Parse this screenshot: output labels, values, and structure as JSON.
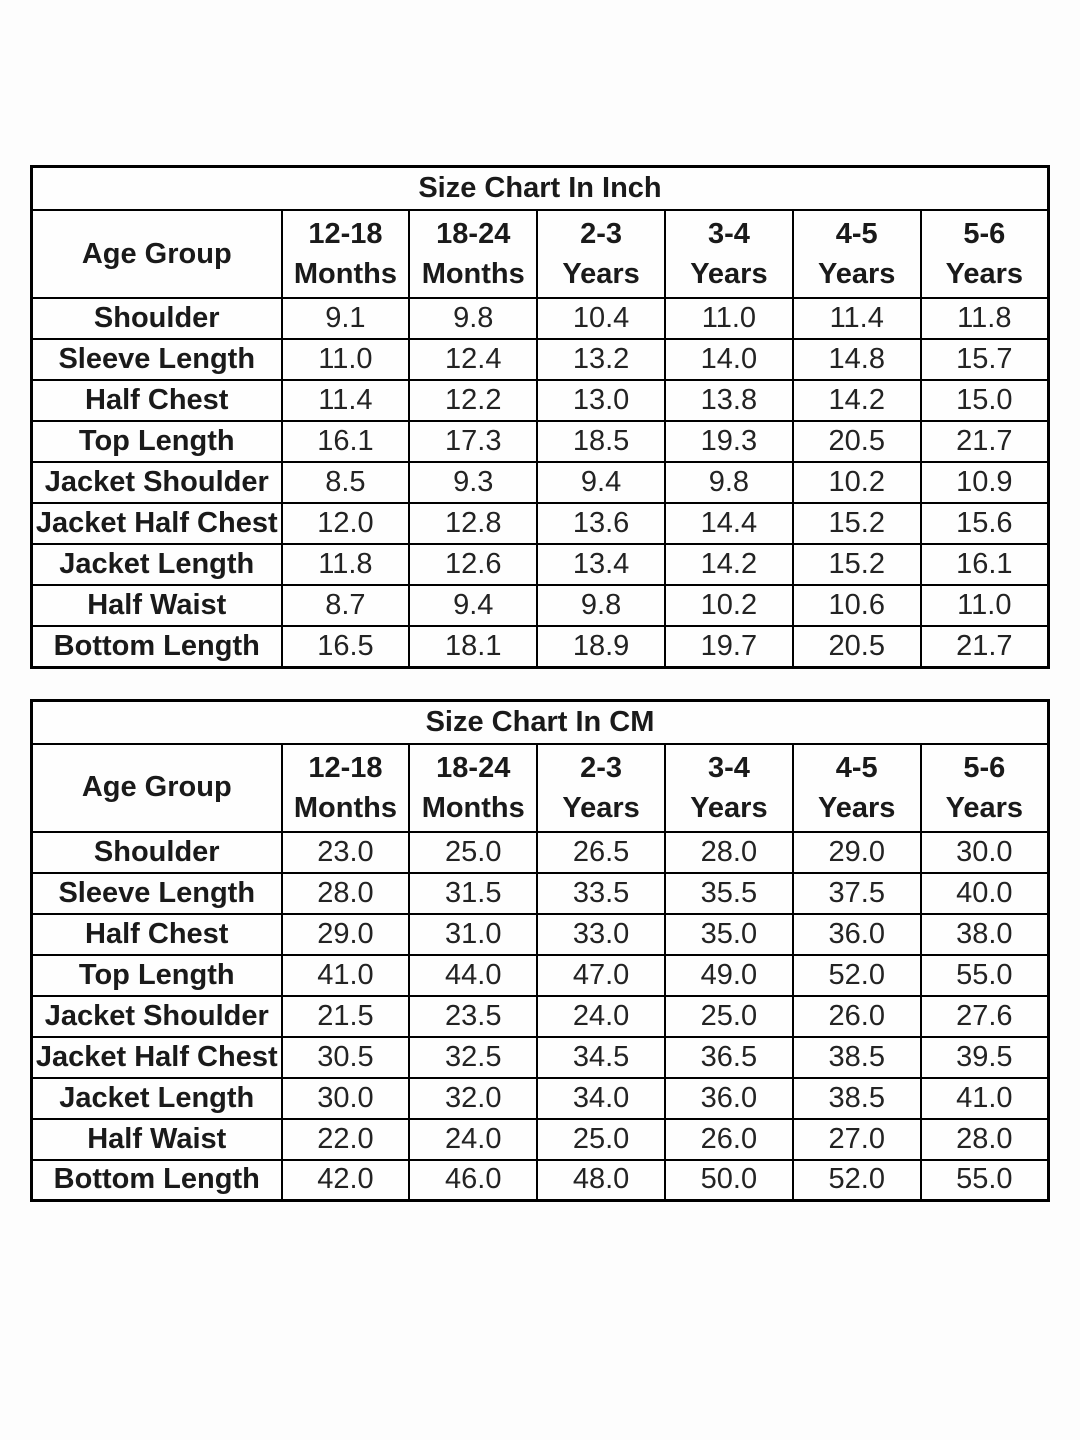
{
  "page": {
    "background_color": "#fdfdfd",
    "text_color": "#1a1a1a",
    "border_color": "#000000"
  },
  "tables": [
    {
      "title": "Size Chart In Inch",
      "header_label": "Age Group",
      "columns": [
        [
          "12-18",
          "Months"
        ],
        [
          "18-24",
          "Months"
        ],
        [
          "2-3",
          "Years"
        ],
        [
          "3-4",
          "Years"
        ],
        [
          "4-5",
          "Years"
        ],
        [
          "5-6",
          "Years"
        ]
      ],
      "rows": [
        {
          "label": "Shoulder",
          "values": [
            "9.1",
            "9.8",
            "10.4",
            "11.0",
            "11.4",
            "11.8"
          ]
        },
        {
          "label": "Sleeve Length",
          "values": [
            "11.0",
            "12.4",
            "13.2",
            "14.0",
            "14.8",
            "15.7"
          ]
        },
        {
          "label": "Half Chest",
          "values": [
            "11.4",
            "12.2",
            "13.0",
            "13.8",
            "14.2",
            "15.0"
          ]
        },
        {
          "label": "Top Length",
          "values": [
            "16.1",
            "17.3",
            "18.5",
            "19.3",
            "20.5",
            "21.7"
          ]
        },
        {
          "label": "Jacket Shoulder",
          "values": [
            "8.5",
            "9.3",
            "9.4",
            "9.8",
            "10.2",
            "10.9"
          ]
        },
        {
          "label": "Jacket Half Chest",
          "values": [
            "12.0",
            "12.8",
            "13.6",
            "14.4",
            "15.2",
            "15.6"
          ]
        },
        {
          "label": "Jacket Length",
          "values": [
            "11.8",
            "12.6",
            "13.4",
            "14.2",
            "15.2",
            "16.1"
          ]
        },
        {
          "label": "Half Waist",
          "values": [
            "8.7",
            "9.4",
            "9.8",
            "10.2",
            "10.6",
            "11.0"
          ]
        },
        {
          "label": "Bottom Length",
          "values": [
            "16.5",
            "18.1",
            "18.9",
            "19.7",
            "20.5",
            "21.7"
          ]
        }
      ]
    },
    {
      "title": "Size Chart In CM",
      "header_label": "Age Group",
      "columns": [
        [
          "12-18",
          "Months"
        ],
        [
          "18-24",
          "Months"
        ],
        [
          "2-3",
          "Years"
        ],
        [
          "3-4",
          "Years"
        ],
        [
          "4-5",
          "Years"
        ],
        [
          "5-6",
          "Years"
        ]
      ],
      "rows": [
        {
          "label": "Shoulder",
          "values": [
            "23.0",
            "25.0",
            "26.5",
            "28.0",
            "29.0",
            "30.0"
          ]
        },
        {
          "label": "Sleeve Length",
          "values": [
            "28.0",
            "31.5",
            "33.5",
            "35.5",
            "37.5",
            "40.0"
          ]
        },
        {
          "label": "Half Chest",
          "values": [
            "29.0",
            "31.0",
            "33.0",
            "35.0",
            "36.0",
            "38.0"
          ]
        },
        {
          "label": "Top Length",
          "values": [
            "41.0",
            "44.0",
            "47.0",
            "49.0",
            "52.0",
            "55.0"
          ]
        },
        {
          "label": "Jacket Shoulder",
          "values": [
            "21.5",
            "23.5",
            "24.0",
            "25.0",
            "26.0",
            "27.6"
          ]
        },
        {
          "label": "Jacket Half Chest",
          "values": [
            "30.5",
            "32.5",
            "34.5",
            "36.5",
            "38.5",
            "39.5"
          ]
        },
        {
          "label": "Jacket Length",
          "values": [
            "30.0",
            "32.0",
            "34.0",
            "36.0",
            "38.5",
            "41.0"
          ]
        },
        {
          "label": "Half Waist",
          "values": [
            "22.0",
            "24.0",
            "25.0",
            "26.0",
            "27.0",
            "28.0"
          ]
        },
        {
          "label": "Bottom Length",
          "values": [
            "42.0",
            "46.0",
            "48.0",
            "50.0",
            "52.0",
            "55.0"
          ]
        }
      ]
    }
  ]
}
